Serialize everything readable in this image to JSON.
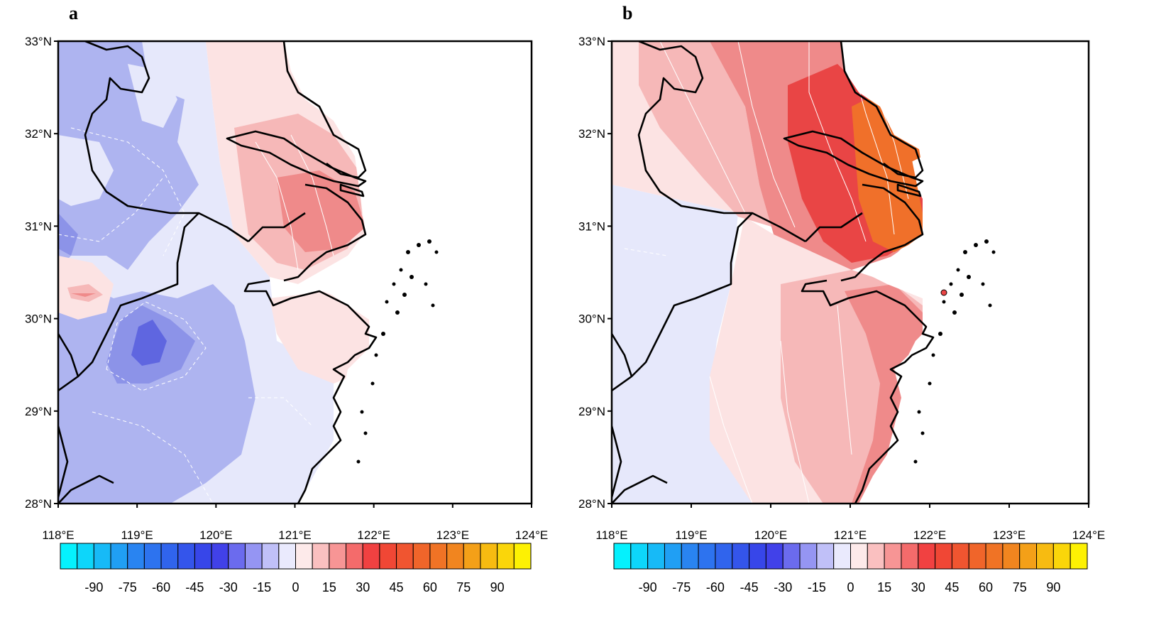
{
  "panels": [
    {
      "letter": "a",
      "id": "a"
    },
    {
      "letter": "b",
      "id": "b"
    }
  ],
  "map": {
    "lat_range": [
      28,
      33
    ],
    "lon_range": [
      118,
      124
    ],
    "lat_ticks": [
      "28°N",
      "29°N",
      "30°N",
      "31°N",
      "32°N",
      "33°N"
    ],
    "lon_ticks": [
      "118°E",
      "119°E",
      "120°E",
      "121°E",
      "122°E",
      "123°E",
      "124°E"
    ]
  },
  "colorbar": {
    "min": -105,
    "max": 105,
    "step": 7.5,
    "labels": [
      "-90",
      "-75",
      "-60",
      "-45",
      "-30",
      "-15",
      "0",
      "15",
      "30",
      "45",
      "60",
      "75",
      "90"
    ],
    "color_stops": [
      "#00ffff",
      "#2a7ff0",
      "#3a3ae8",
      "#ffffff",
      "#f03a3a",
      "#f08020",
      "#ffff00"
    ]
  }
}
